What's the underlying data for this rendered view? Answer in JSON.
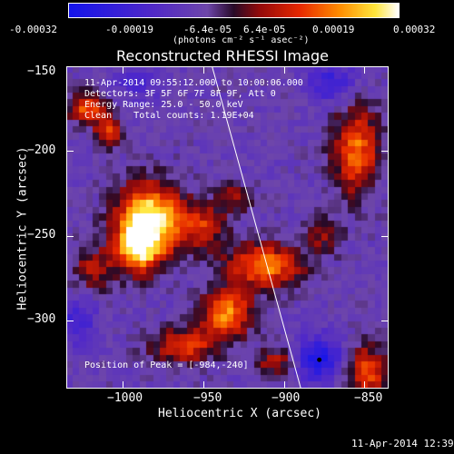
{
  "colorbar": {
    "tick_labels": [
      "-0.00032",
      "-0.00019",
      "-6.4e-05",
      "6.4e-05",
      "0.00019",
      "0.00032"
    ],
    "unit_label": "(photons cm⁻² s⁻¹ asec⁻²)"
  },
  "chart_data": {
    "type": "heatmap",
    "title": "Reconstructed RHESSI Image",
    "xlabel": "Heliocentric X (arcsec)",
    "ylabel": "Heliocentric Y (arcsec)",
    "xlim": [
      -1035,
      -835
    ],
    "ylim": [
      -340,
      -150
    ],
    "x_ticks": [
      -1000,
      -950,
      -900,
      -850
    ],
    "x_tick_labels": [
      "−1000",
      "−950",
      "−900",
      "−850"
    ],
    "y_ticks": [
      -150,
      -200,
      -250,
      -300
    ],
    "y_tick_labels": [
      "−150",
      "−200",
      "−250",
      "−300"
    ],
    "color_range": [
      -0.00032,
      0.00032
    ],
    "peak": {
      "x": -984,
      "y": -240
    },
    "limb_line": {
      "x1": -946,
      "y1": -145,
      "x2": -888,
      "y2": -345
    },
    "marker": {
      "x": -878,
      "y": -323
    },
    "blobs": [
      {
        "x": -983,
        "y": -240,
        "sx": 14,
        "sy": 14,
        "amp": 1.0
      },
      {
        "x": -990,
        "y": -258,
        "sx": 10,
        "sy": 10,
        "amp": 0.75
      },
      {
        "x": -950,
        "y": -245,
        "sx": 10,
        "sy": 10,
        "amp": 0.45
      },
      {
        "x": -912,
        "y": -268,
        "sx": 16,
        "sy": 9,
        "amp": 0.7
      },
      {
        "x": -935,
        "y": -296,
        "sx": 11,
        "sy": 10,
        "amp": 0.7
      },
      {
        "x": -962,
        "y": -315,
        "sx": 14,
        "sy": 7,
        "amp": 0.55
      },
      {
        "x": -1022,
        "y": -175,
        "sx": 8,
        "sy": 6,
        "amp": 0.6
      },
      {
        "x": -1008,
        "y": -188,
        "sx": 6,
        "sy": 6,
        "amp": 0.55
      },
      {
        "x": -1018,
        "y": -270,
        "sx": 9,
        "sy": 9,
        "amp": 0.35
      },
      {
        "x": -855,
        "y": -200,
        "sx": 10,
        "sy": 18,
        "amp": 0.65
      },
      {
        "x": -848,
        "y": -330,
        "sx": 9,
        "sy": 10,
        "amp": 0.6
      },
      {
        "x": -905,
        "y": -325,
        "sx": 8,
        "sy": 6,
        "amp": 0.4
      },
      {
        "x": -930,
        "y": -228,
        "sx": 7,
        "sy": 6,
        "amp": 0.35
      },
      {
        "x": -876,
        "y": -250,
        "sx": 8,
        "sy": 8,
        "amp": 0.3
      }
    ],
    "dips": [
      {
        "x": -878,
        "y": -323,
        "sx": 10,
        "sy": 9,
        "amp": 0.75
      },
      {
        "x": -870,
        "y": -160,
        "sx": 10,
        "sy": 9,
        "amp": 0.5
      },
      {
        "x": -1028,
        "y": -300,
        "sx": 8,
        "sy": 10,
        "amp": 0.45
      },
      {
        "x": -990,
        "y": -160,
        "sx": 10,
        "sy": 7,
        "amp": 0.35
      }
    ]
  },
  "annotations": {
    "time_range": "11-Apr-2014 09:55:12.000 to 10:00:06.000",
    "detectors": "Detectors: 3F 5F 6F 7F 8F 9F, Att 0",
    "energy_range": "Energy Range: 25.0 - 50.0 keV",
    "clean_counts": "Clean    Total counts: 1.19E+04",
    "peak_position": "Position of Peak = [-984,-240]"
  },
  "footer": {
    "timestamp": "11-Apr-2014 12:39"
  },
  "colors": {
    "background": "#000000",
    "foreground": "#ffffff",
    "line": "#ffffff"
  }
}
